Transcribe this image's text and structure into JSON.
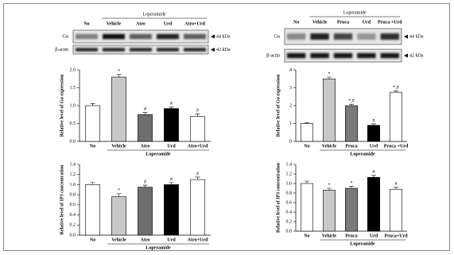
{
  "chart_data": [
    {
      "type": "bar",
      "ylabel": "Relative level of Gα expression",
      "group_label": "Loperamide",
      "categories": [
        "No",
        "Vehicle",
        "Atro",
        "Urd",
        "Atro+Urd"
      ],
      "values": [
        1.0,
        1.8,
        0.75,
        0.92,
        0.7
      ],
      "errors": [
        0.06,
        0.07,
        0.06,
        0.04,
        0.07
      ],
      "colors": [
        "#ffffff",
        "#c8c8c8",
        "#6e6e6e",
        "#000000",
        "#ffffff"
      ],
      "annotations": [
        null,
        "*",
        "#",
        "#",
        "#"
      ],
      "ylim": [
        0,
        2.0
      ],
      "yticks": [
        {
          "value": 0,
          "label": "0.0"
        },
        0.5,
        {
          "value": 1,
          "label": "1.0"
        },
        1.5,
        {
          "value": 2,
          "label": "2.0"
        }
      ]
    },
    {
      "type": "bar",
      "ylabel": "Relative level of IP3 concentration",
      "group_label": "Loperamide",
      "categories": [
        "No",
        "Vehicle",
        "Atro",
        "Urd",
        "Atro+Urd"
      ],
      "values": [
        1.0,
        0.76,
        0.95,
        1.0,
        1.1
      ],
      "errors": [
        0.04,
        0.06,
        0.04,
        0.04,
        0.05
      ],
      "colors": [
        "#ffffff",
        "#c8c8c8",
        "#6e6e6e",
        "#000000",
        "#ffffff"
      ],
      "annotations": [
        null,
        "*",
        "#",
        "#",
        "#"
      ],
      "ylim": [
        0,
        1.4
      ],
      "yticks": [
        {
          "value": 0,
          "label": "0.0"
        },
        0.2,
        0.4,
        0.6,
        0.8,
        {
          "value": 1,
          "label": "1.0"
        },
        1.2,
        1.4
      ]
    },
    {
      "type": "bar",
      "ylabel": "Relative level of Gα expression",
      "group_label": "Loperamide",
      "categories": [
        "No",
        "Vehicle",
        "Pruca",
        "Urd",
        "Pruca +Urd"
      ],
      "values": [
        1.0,
        3.5,
        2.0,
        0.9,
        2.75
      ],
      "errors": [
        0.04,
        0.1,
        0.08,
        0.08,
        0.08
      ],
      "colors": [
        "#ffffff",
        "#c8c8c8",
        "#7a7a7a",
        "#000000",
        "#ffffff"
      ],
      "annotations": [
        null,
        "*",
        "*,#",
        "#",
        "*,#"
      ],
      "ylim": [
        0,
        4
      ],
      "yticks": [
        0,
        1,
        2,
        3,
        4
      ]
    },
    {
      "type": "bar",
      "ylabel": "Relative level of IP3 concentration",
      "group_label": "Loperamide",
      "categories": [
        "No",
        "Vehicle",
        "Pruca",
        "Urd",
        "Pruca+Urd"
      ],
      "values": [
        1.0,
        0.86,
        0.9,
        1.13,
        0.88
      ],
      "errors": [
        0.05,
        0.04,
        0.04,
        0.04,
        0.04
      ],
      "colors": [
        "#ffffff",
        "#c8c8c8",
        "#7a7a7a",
        "#000000",
        "#ffffff"
      ],
      "annotations": [
        null,
        "*",
        "*",
        "#",
        "#"
      ],
      "ylim": [
        0,
        1.4
      ],
      "yticks": [
        {
          "value": 0,
          "label": "0.0"
        },
        0.2,
        0.4,
        0.6,
        0.8,
        {
          "value": 1,
          "label": "1.0"
        },
        1.2,
        1.4
      ]
    }
  ],
  "blots": [
    {
      "group_label": "Loperamide",
      "lanes": [
        "No",
        "Vehicle",
        "Atro",
        "Urd",
        "Atro+Urd"
      ],
      "rows": [
        {
          "label": "Gα",
          "size": "44 kDa"
        },
        {
          "label": "β-actin",
          "size": "42 kDa"
        }
      ]
    },
    {
      "group_label": "Loperamide",
      "lanes": [
        "No",
        "Vehicle",
        "Pruca",
        "Urd",
        "Pruca +Urd"
      ],
      "rows": [
        {
          "label": "Gα",
          "size": "44 kDa"
        },
        {
          "label": "β-actin",
          "size": "42 kDa"
        }
      ]
    }
  ]
}
